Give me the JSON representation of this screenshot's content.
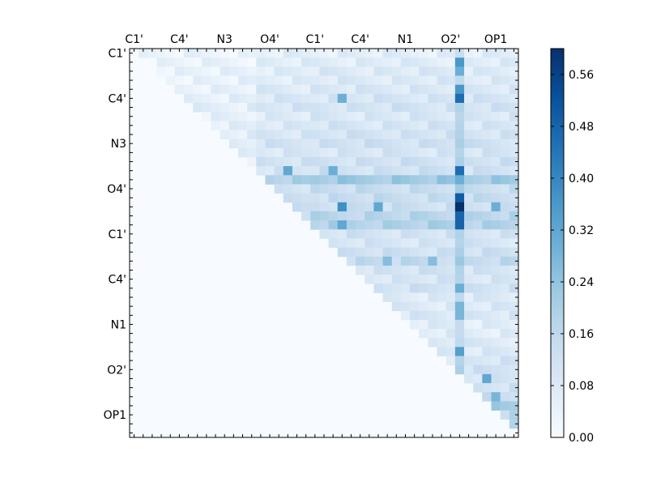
{
  "chart_data": {
    "type": "heatmap",
    "title": "",
    "xlabel": "",
    "ylabel": "",
    "grid_size": 43,
    "x_tick_labels": [
      "C1'",
      "C4'",
      "N3",
      "O4'",
      "C1'",
      "C4'",
      "N1",
      "O2'",
      "OP1"
    ],
    "y_tick_labels": [
      "C1'",
      "C4'",
      "N3",
      "O4'",
      "C1'",
      "C4'",
      "N1",
      "O2'",
      "OP1"
    ],
    "tick_label_indices": [
      0,
      5,
      10,
      15,
      20,
      25,
      30,
      35,
      40
    ],
    "colormap": "Blues",
    "colorbar": {
      "min": 0.0,
      "max": 0.6,
      "ticks": [
        "0.00",
        "0.08",
        "0.16",
        "0.24",
        "0.32",
        "0.40",
        "0.48",
        "0.56"
      ],
      "tick_values": [
        0.0,
        0.08,
        0.16,
        0.24,
        0.32,
        0.4,
        0.48,
        0.56
      ]
    },
    "notes_values": "Upper-triangular matrix (row i, col j>i). Lower triangle is 0.",
    "background_level": 0.13,
    "row_levels": [
      0.06,
      0.07,
      0.08,
      0.08,
      0.09,
      0.1,
      0.11,
      0.09,
      0.1,
      0.11,
      0.12,
      0.1,
      0.12,
      0.12,
      0.22,
      0.14,
      0.14,
      0.13,
      0.17,
      0.19,
      0.11,
      0.1,
      0.12,
      0.15,
      0.11,
      0.1,
      0.12,
      0.08,
      0.08,
      0.09,
      0.07,
      0.07,
      0.08,
      0.08,
      0.1,
      0.12,
      0.1,
      0.12,
      0.14,
      0.2,
      0.16,
      0.2,
      0.0
    ],
    "hotspots": [
      {
        "row": 1,
        "col": 36,
        "value": 0.36
      },
      {
        "row": 2,
        "col": 36,
        "value": 0.3
      },
      {
        "row": 4,
        "col": 36,
        "value": 0.36
      },
      {
        "row": 5,
        "col": 36,
        "value": 0.46
      },
      {
        "row": 5,
        "col": 23,
        "value": 0.3
      },
      {
        "row": 13,
        "col": 36,
        "value": 0.46
      },
      {
        "row": 13,
        "col": 17,
        "value": 0.32
      },
      {
        "row": 13,
        "col": 22,
        "value": 0.3
      },
      {
        "row": 16,
        "col": 36,
        "value": 0.5
      },
      {
        "row": 17,
        "col": 36,
        "value": 0.6
      },
      {
        "row": 17,
        "col": 23,
        "value": 0.38
      },
      {
        "row": 17,
        "col": 27,
        "value": 0.32
      },
      {
        "row": 17,
        "col": 40,
        "value": 0.3
      },
      {
        "row": 18,
        "col": 36,
        "value": 0.48
      },
      {
        "row": 19,
        "col": 36,
        "value": 0.48
      },
      {
        "row": 19,
        "col": 23,
        "value": 0.32
      },
      {
        "row": 23,
        "col": 28,
        "value": 0.26
      },
      {
        "row": 23,
        "col": 33,
        "value": 0.26
      },
      {
        "row": 26,
        "col": 36,
        "value": 0.3
      },
      {
        "row": 28,
        "col": 36,
        "value": 0.28
      },
      {
        "row": 29,
        "col": 36,
        "value": 0.28
      },
      {
        "row": 33,
        "col": 36,
        "value": 0.34
      },
      {
        "row": 36,
        "col": 39,
        "value": 0.32
      },
      {
        "row": 38,
        "col": 40,
        "value": 0.28
      },
      {
        "row": 39,
        "col": 41,
        "value": 0.22
      }
    ]
  }
}
